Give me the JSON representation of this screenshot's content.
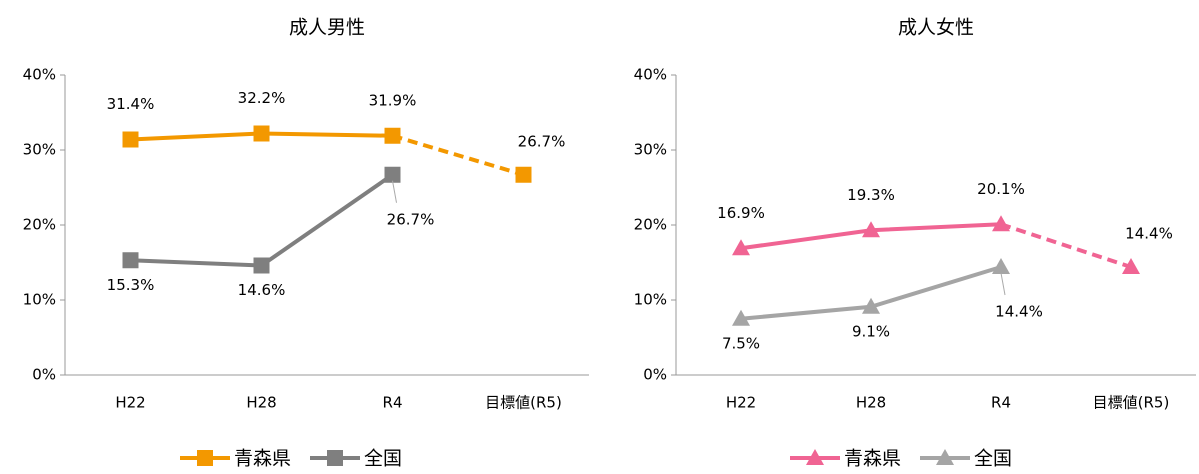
{
  "chart_data": [
    {
      "type": "line",
      "title": "成人男性",
      "marker": "square",
      "target_dashed": true,
      "categories": [
        "H22",
        "H28",
        "R4",
        "目標値(R5)"
      ],
      "ylim": [
        0,
        40
      ],
      "yticks": [
        {
          "value": 0,
          "label": "0%"
        },
        {
          "value": 10,
          "label": "10%"
        },
        {
          "value": 20,
          "label": "20%"
        },
        {
          "value": 30,
          "label": "30%"
        },
        {
          "value": 40,
          "label": "40%"
        }
      ],
      "series": [
        {
          "name": "青森県",
          "color": "#f39800",
          "values": [
            31.4,
            32.2,
            31.9,
            26.7
          ],
          "value_labels": [
            "31.4%",
            "32.2%",
            "31.9%",
            "26.7%"
          ]
        },
        {
          "name": "全国",
          "color": "#7f7f7f",
          "values": [
            15.3,
            14.6,
            26.7,
            null
          ],
          "value_labels": [
            "15.3%",
            "14.6%",
            "26.7%",
            null
          ]
        }
      ]
    },
    {
      "type": "line",
      "title": "成人女性",
      "marker": "triangle",
      "target_dashed": true,
      "categories": [
        "H22",
        "H28",
        "R4",
        "目標値(R5)"
      ],
      "ylim": [
        0,
        40
      ],
      "yticks": [
        {
          "value": 0,
          "label": "0%"
        },
        {
          "value": 10,
          "label": "10%"
        },
        {
          "value": 20,
          "label": "20%"
        },
        {
          "value": 30,
          "label": "30%"
        },
        {
          "value": 40,
          "label": "40%"
        }
      ],
      "series": [
        {
          "name": "青森県",
          "color": "#f06493",
          "values": [
            16.9,
            19.3,
            20.1,
            14.4
          ],
          "value_labels": [
            "16.9%",
            "19.3%",
            "20.1%",
            "14.4%"
          ]
        },
        {
          "name": "全国",
          "color": "#a5a5a5",
          "values": [
            7.5,
            9.1,
            14.4,
            null
          ],
          "value_labels": [
            "7.5%",
            "9.1%",
            "14.4%",
            null
          ]
        }
      ]
    }
  ]
}
